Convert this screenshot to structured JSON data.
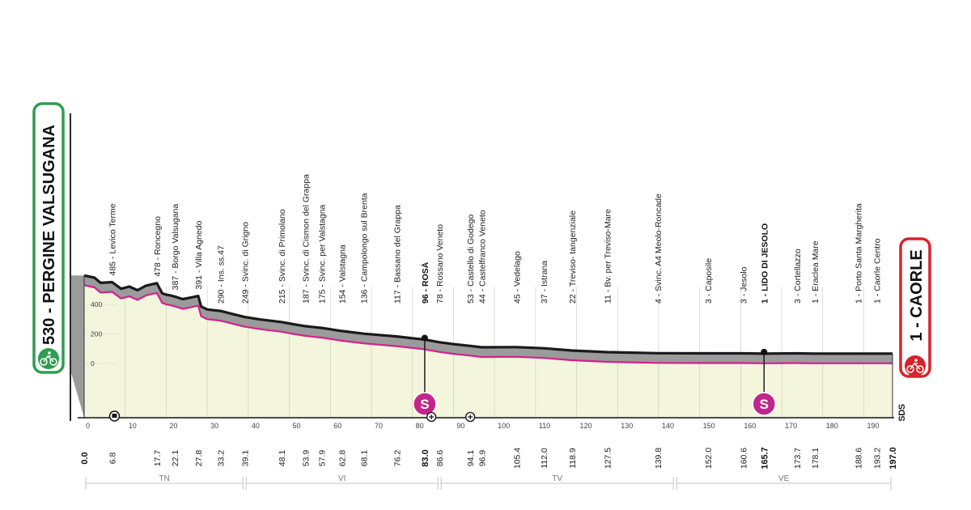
{
  "start": {
    "label": "530 - PERGINE VALSUGANA",
    "color": "#2e9d4f"
  },
  "finish": {
    "label": "1 - CAORLE",
    "color": "#d8232a"
  },
  "sponsor": "SDS",
  "colors": {
    "profile_fill": "#f3f5dd",
    "road": "#9b9b9b",
    "edge": "#1a1a1a",
    "pink": "#d6208b"
  },
  "chart_data": {
    "type": "area",
    "xlim": [
      0,
      197
    ],
    "ylim": [
      0,
      600
    ],
    "y_ticks": [
      "0",
      "200",
      "400"
    ],
    "x_ticks": [
      0,
      10,
      20,
      30,
      40,
      50,
      60,
      70,
      80,
      90,
      100,
      110,
      120,
      130,
      140,
      150,
      160,
      170,
      180,
      190
    ],
    "x_tick_labels": [
      "0",
      "10",
      "20",
      "30",
      "40",
      "50",
      "60",
      "70",
      "80",
      "90",
      "100",
      "110",
      "120",
      "130",
      "140",
      "150",
      "160",
      "170",
      "180",
      "190"
    ],
    "profile": [
      [
        0,
        530
      ],
      [
        2.5,
        515
      ],
      [
        4,
        480
      ],
      [
        6.8,
        485
      ],
      [
        9,
        440
      ],
      [
        11,
        455
      ],
      [
        13,
        430
      ],
      [
        15,
        460
      ],
      [
        16.5,
        470
      ],
      [
        17.7,
        478
      ],
      [
        19,
        410
      ],
      [
        20,
        400
      ],
      [
        21,
        395
      ],
      [
        22.1,
        387
      ],
      [
        24,
        370
      ],
      [
        26,
        380
      ],
      [
        27.8,
        391
      ],
      [
        28.5,
        320
      ],
      [
        30,
        300
      ],
      [
        33.2,
        290
      ],
      [
        36,
        270
      ],
      [
        39.1,
        249
      ],
      [
        43,
        232
      ],
      [
        48.1,
        215
      ],
      [
        51,
        200
      ],
      [
        53.9,
        187
      ],
      [
        57.9,
        175
      ],
      [
        62.8,
        154
      ],
      [
        68.1,
        136
      ],
      [
        76.2,
        117
      ],
      [
        80,
        105
      ],
      [
        83,
        96
      ],
      [
        86.6,
        78
      ],
      [
        90,
        65
      ],
      [
        94.1,
        53
      ],
      [
        96.9,
        44
      ],
      [
        105.4,
        45
      ],
      [
        112,
        37
      ],
      [
        118.9,
        22
      ],
      [
        127.5,
        11
      ],
      [
        139.8,
        4
      ],
      [
        152,
        3
      ],
      [
        160.6,
        3
      ],
      [
        165.7,
        1
      ],
      [
        173.7,
        3
      ],
      [
        178.1,
        1
      ],
      [
        188.6,
        1
      ],
      [
        193.2,
        1
      ],
      [
        197,
        1
      ]
    ],
    "waypoints": [
      {
        "km": "0.0",
        "label": "",
        "x": 0,
        "alt": 530,
        "bold": true
      },
      {
        "km": "6.8",
        "label": "485 - Levico Terme",
        "x": 6.8,
        "alt": 485
      },
      {
        "km": "17.7",
        "label": "478 - Roncegno",
        "x": 17.7,
        "alt": 478
      },
      {
        "km": "22.1",
        "label": "387 - Borgo Valsugana",
        "x": 22.1,
        "alt": 387
      },
      {
        "km": "27.8",
        "label": "391 - Villa Agnedo",
        "x": 27.8,
        "alt": 391
      },
      {
        "km": "33.2",
        "label": "290 - Ins. ss.47",
        "x": 33.2,
        "alt": 290
      },
      {
        "km": "39.1",
        "label": "249 - Svinc. di Grigno",
        "x": 39.1,
        "alt": 249
      },
      {
        "km": "48.1",
        "label": "215 - Svinc. di Primolano",
        "x": 48.1,
        "alt": 215
      },
      {
        "km": "53.9",
        "label": "187 - Svinc. di Cismon del Grappa",
        "x": 53.9,
        "alt": 187
      },
      {
        "km": "57.9",
        "label": "175 - Svinc. per Valstagna",
        "x": 57.9,
        "alt": 175
      },
      {
        "km": "62.8",
        "label": "154 - Valstagna",
        "x": 62.8,
        "alt": 154
      },
      {
        "km": "68.1",
        "label": "136 - Campolongo sul Brenta",
        "x": 68.1,
        "alt": 136
      },
      {
        "km": "76.2",
        "label": "117 - Bassano del Grappa",
        "x": 76.2,
        "alt": 117
      },
      {
        "km": "83.0",
        "label": "96 - ROSÀ",
        "x": 83.0,
        "alt": 96,
        "bold": true
      },
      {
        "km": "86.6",
        "label": "78 - Rossano Veneto",
        "x": 86.6,
        "alt": 78
      },
      {
        "km": "94.1",
        "label": "53 - Castello di Godego",
        "x": 94.1,
        "alt": 53
      },
      {
        "km": "96.9",
        "label": "44 - Castelfranco Veneto",
        "x": 96.9,
        "alt": 44
      },
      {
        "km": "105.4",
        "label": "45 - Vedelago",
        "x": 105.4,
        "alt": 45
      },
      {
        "km": "112.0",
        "label": "37 - Istrana",
        "x": 112.0,
        "alt": 37
      },
      {
        "km": "118.9",
        "label": "22 - Treviso- tangenziale",
        "x": 118.9,
        "alt": 22
      },
      {
        "km": "127.5",
        "label": "11 - Bv. per Treviso-Mare",
        "x": 127.5,
        "alt": 11
      },
      {
        "km": "139.8",
        "label": "4 - Svinc. A4  Meolo-Roncade",
        "x": 139.8,
        "alt": 4
      },
      {
        "km": "152.0",
        "label": "3 - Caposile",
        "x": 152.0,
        "alt": 3
      },
      {
        "km": "160.6",
        "label": "3 - Jesolo",
        "x": 160.6,
        "alt": 3
      },
      {
        "km": "165.7",
        "label": "1 - LIDO DI JESOLO",
        "x": 165.7,
        "alt": 1,
        "bold": true
      },
      {
        "km": "173.7",
        "label": "3 - Cortellazzo",
        "x": 173.7,
        "alt": 3
      },
      {
        "km": "178.1",
        "label": "1 - Eraclea Mare",
        "x": 178.1,
        "alt": 1
      },
      {
        "km": "188.6",
        "label": "1 - Porto Santa Margherita",
        "x": 188.6,
        "alt": 1
      },
      {
        "km": "193.2",
        "label": "1 - Caorle Centro",
        "x": 193.2,
        "alt": 1
      },
      {
        "km": "197.0",
        "label": "",
        "x": 197.0,
        "alt": 1,
        "bold": true
      }
    ],
    "sprints": [
      {
        "x": 83.0,
        "label": "S"
      },
      {
        "x": 165.7,
        "label": "S"
      }
    ],
    "regions": [
      {
        "name": "TN",
        "from": 0,
        "to": 39.1
      },
      {
        "name": "VI",
        "from": 39.1,
        "to": 86.6
      },
      {
        "name": "TV",
        "from": 86.6,
        "to": 144
      },
      {
        "name": "VE",
        "from": 144,
        "to": 197
      }
    ]
  }
}
